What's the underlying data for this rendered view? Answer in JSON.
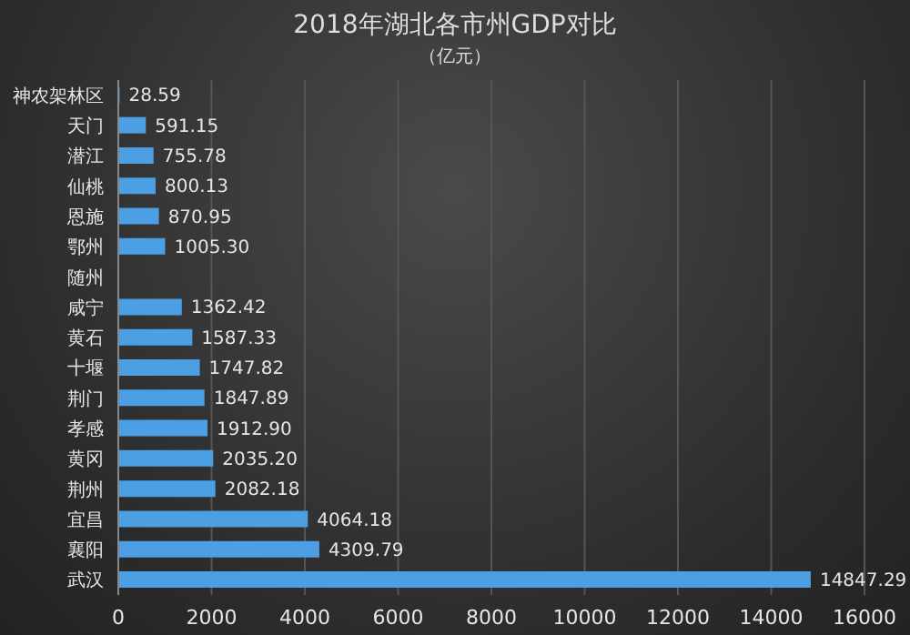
{
  "chart_data": {
    "type": "bar",
    "orientation": "horizontal",
    "title": "2018年湖北各市州GDP对比",
    "subtitle": "（亿元）",
    "categories": [
      "神农架林区",
      "天门",
      "潜江",
      "仙桃",
      "恩施",
      "鄂州",
      "随州",
      "咸宁",
      "黄石",
      "十堰",
      "荆门",
      "孝感",
      "黄冈",
      "荆州",
      "宜昌",
      "襄阳",
      "武汉"
    ],
    "values": [
      28.59,
      591.15,
      755.78,
      800.13,
      870.95,
      1005.3,
      null,
      1362.42,
      1587.33,
      1747.82,
      1847.89,
      1912.9,
      2035.2,
      2082.18,
      4064.18,
      4309.79,
      14847.29
    ],
    "value_labels": [
      "28.59",
      "591.15",
      "755.78",
      "800.13",
      "870.95",
      "1005.30",
      null,
      "1362.42",
      "1587.33",
      "1747.82",
      "1847.89",
      "1912.90",
      "2035.20",
      "2082.18",
      "4064.18",
      "4309.79",
      "14847.29"
    ],
    "color": "#4c9fe3",
    "xlim": [
      0,
      16000
    ],
    "xticks": [
      0,
      2000,
      4000,
      6000,
      8000,
      10000,
      12000,
      14000,
      16000
    ],
    "grid": "x"
  }
}
